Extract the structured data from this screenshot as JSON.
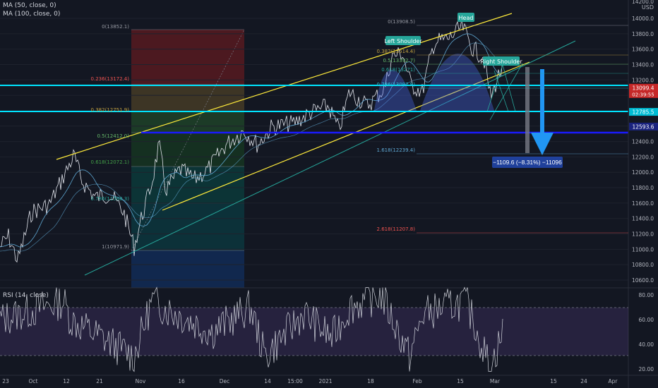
{
  "legend": {
    "ma50": "MA (50, close, 0)",
    "ma100": "MA (100, close, 0)",
    "rsi": "RSI (14, close)"
  },
  "price_axis": {
    "currency": "USD",
    "ticks": [
      10600,
      10800,
      11000,
      11200,
      11400,
      11600,
      11800,
      12000,
      12200,
      12400,
      12600,
      12800,
      13000,
      13200,
      13400,
      13600,
      13800,
      14000
    ],
    "tick_labels": [
      "10600.0",
      "10800.0",
      "11000.0",
      "11200.0",
      "11400.0",
      "11600.0",
      "11800.0",
      "12000.0",
      "12200.0",
      "12400.0",
      "12600.0",
      "12800.0",
      "13000.0",
      "13200.0",
      "13400.0",
      "13600.0",
      "13800.0",
      "14000.0"
    ],
    "top_label": "14200.0",
    "badges": [
      {
        "text": "13099.4",
        "color": "#c62828",
        "price": 13099
      },
      {
        "text": "12785.5",
        "color": "#00bcd4",
        "price": 12785
      },
      {
        "text": "12593.6",
        "color": "#1a237e",
        "price": 12594
      }
    ],
    "badge_extra": "02:39:55"
  },
  "time_axis": [
    "23",
    "Oct",
    "12",
    "21",
    "Nov",
    "16",
    "Dec",
    "14",
    "15:00",
    "2021",
    "18",
    "Feb",
    "15",
    "Mar",
    "15",
    "24",
    "Apr"
  ],
  "rsi_axis": [
    "80.00",
    "60.00",
    "40.00",
    "20.00"
  ],
  "fib_labels": [
    "0(13852.1)",
    "0.236(13172.4)",
    "0.382(12751.9)",
    "0.5(12412.0)",
    "0.618(12072.1)",
    "0.786(11588.3)",
    "1(10971.9)"
  ],
  "fib_right_labels": [
    "0(13908.5)",
    "0.382(13514.4)",
    "0.5(13392.7)",
    "0.618(13271)",
    "0.786(13097.9)",
    "1.618(12239.4)",
    "2.618(11207.8)"
  ],
  "pattern_labels": {
    "head": "Head",
    "left_shoulder": "Left Shoulder",
    "right_shoulder": "Right Shoulder"
  },
  "projection_label": "−1109.6 (−8.31%) −11096",
  "colors": {
    "background": "#131722",
    "candle_up": "#ffffff",
    "cyan_line": "#00e5ff",
    "blue_line": "#1a1aff",
    "channel_yellow": "#ffeb3b",
    "channel_green": "#26a69a",
    "rsi_line": "#d1d4dc",
    "rsi_band": "#7e57c2",
    "arrow": "#2196f3"
  },
  "chart_data": {
    "type": "line",
    "title": "",
    "ylim": [
      10500,
      14200
    ],
    "horizontal_levels": [
      13099,
      12785,
      12594
    ],
    "rsi": {
      "ylim": [
        15,
        85
      ],
      "bands": [
        30,
        70
      ]
    }
  }
}
